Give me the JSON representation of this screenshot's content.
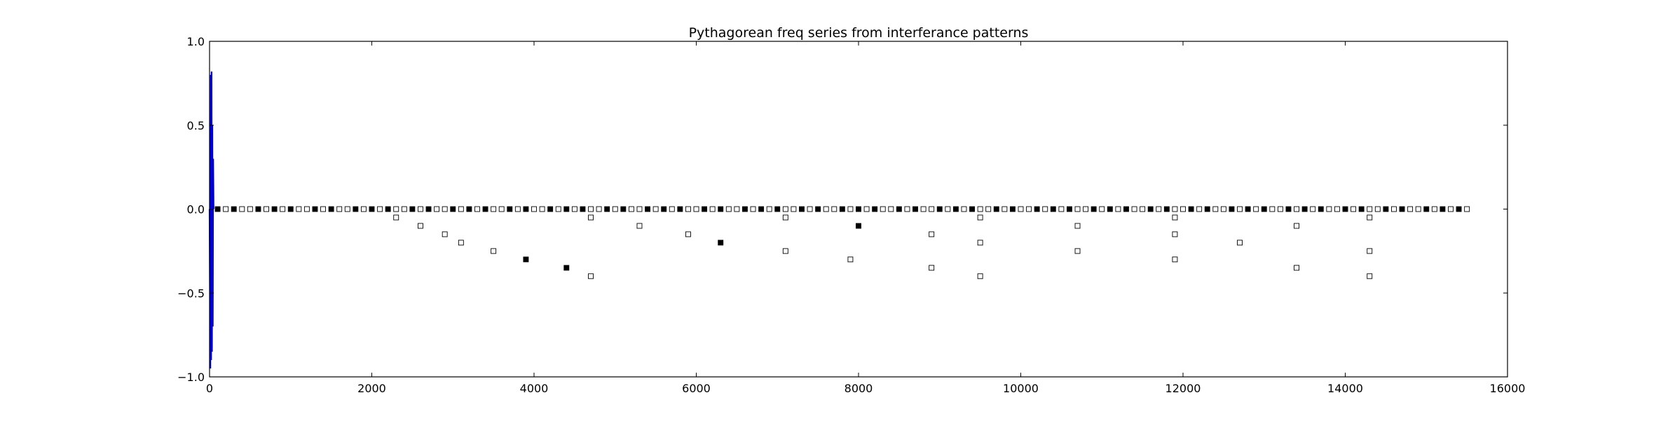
{
  "chart_data": {
    "type": "scatter",
    "title": "Pythagorean freq series from interferance patterns",
    "xlabel": "",
    "ylabel": "",
    "xlim": [
      0,
      16000
    ],
    "ylim": [
      -1.0,
      1.0
    ],
    "grid": false,
    "legend": "none",
    "x_ticks": [
      "0",
      "2000",
      "4000",
      "6000",
      "8000",
      "10000",
      "12000",
      "14000",
      "16000"
    ],
    "y_ticks": [
      "1.0",
      "0.5",
      "0.0",
      "−0.5",
      "−1.0"
    ],
    "colors": {
      "line": "#0000cc",
      "filled": "#000000",
      "open_edge": "#000000",
      "open_face": "#ffffff"
    },
    "line_series": {
      "x": [
        0,
        10,
        15,
        20,
        25,
        30,
        35,
        40,
        45,
        50
      ],
      "y": [
        0.0,
        -0.95,
        0.8,
        -0.9,
        0.82,
        -0.85,
        0.5,
        -0.7,
        0.3,
        0.0
      ]
    },
    "filled_points": [
      [
        100,
        0
      ],
      [
        300,
        0
      ],
      [
        600,
        0
      ],
      [
        800,
        0
      ],
      [
        1000,
        0
      ],
      [
        1300,
        0
      ],
      [
        1500,
        0
      ],
      [
        1800,
        0
      ],
      [
        2000,
        0
      ],
      [
        2200,
        0
      ],
      [
        2500,
        0
      ],
      [
        2700,
        0
      ],
      [
        3000,
        0
      ],
      [
        3200,
        0
      ],
      [
        3400,
        0
      ],
      [
        3700,
        0
      ],
      [
        3900,
        0
      ],
      [
        4200,
        0
      ],
      [
        4400,
        0
      ],
      [
        4600,
        0
      ],
      [
        4900,
        0
      ],
      [
        5100,
        0
      ],
      [
        5400,
        0
      ],
      [
        5600,
        0
      ],
      [
        5800,
        0
      ],
      [
        6100,
        0
      ],
      [
        6300,
        0
      ],
      [
        6600,
        0
      ],
      [
        6800,
        0
      ],
      [
        7000,
        0
      ],
      [
        7300,
        0
      ],
      [
        7500,
        0
      ],
      [
        7800,
        0
      ],
      [
        8000,
        0
      ],
      [
        8200,
        0
      ],
      [
        8500,
        0
      ],
      [
        8700,
        0
      ],
      [
        9000,
        0
      ],
      [
        9200,
        0
      ],
      [
        9400,
        0
      ],
      [
        9700,
        0
      ],
      [
        9900,
        0
      ],
      [
        10200,
        0
      ],
      [
        10400,
        0
      ],
      [
        10600,
        0
      ],
      [
        10900,
        0
      ],
      [
        11100,
        0
      ],
      [
        11300,
        0
      ],
      [
        11600,
        0
      ],
      [
        11800,
        0
      ],
      [
        12100,
        0
      ],
      [
        12300,
        0
      ],
      [
        12600,
        0
      ],
      [
        12800,
        0
      ],
      [
        13000,
        0
      ],
      [
        13300,
        0
      ],
      [
        13500,
        0
      ],
      [
        13700,
        0
      ],
      [
        14000,
        0
      ],
      [
        14200,
        0
      ],
      [
        14500,
        0
      ],
      [
        14700,
        0
      ],
      [
        15000,
        0
      ],
      [
        15200,
        0
      ],
      [
        15400,
        0
      ],
      [
        3900,
        -0.3
      ],
      [
        4400,
        -0.35
      ],
      [
        6300,
        -0.2
      ],
      [
        8000,
        -0.1
      ]
    ],
    "open_points": [
      [
        200,
        0
      ],
      [
        400,
        0
      ],
      [
        500,
        0
      ],
      [
        700,
        0
      ],
      [
        900,
        0
      ],
      [
        1100,
        0
      ],
      [
        1200,
        0
      ],
      [
        1400,
        0
      ],
      [
        1600,
        0
      ],
      [
        1700,
        0
      ],
      [
        1900,
        0
      ],
      [
        2100,
        0
      ],
      [
        2300,
        0
      ],
      [
        2400,
        0
      ],
      [
        2600,
        0
      ],
      [
        2800,
        0
      ],
      [
        2900,
        0
      ],
      [
        3100,
        0
      ],
      [
        3300,
        0
      ],
      [
        3500,
        0
      ],
      [
        3600,
        0
      ],
      [
        3800,
        0
      ],
      [
        4000,
        0
      ],
      [
        4100,
        0
      ],
      [
        4300,
        0
      ],
      [
        4500,
        0
      ],
      [
        4700,
        0
      ],
      [
        4800,
        0
      ],
      [
        5000,
        0
      ],
      [
        5200,
        0
      ],
      [
        5300,
        0
      ],
      [
        5500,
        0
      ],
      [
        5700,
        0
      ],
      [
        5900,
        0
      ],
      [
        6000,
        0
      ],
      [
        6200,
        0
      ],
      [
        6400,
        0
      ],
      [
        6500,
        0
      ],
      [
        6700,
        0
      ],
      [
        6900,
        0
      ],
      [
        7100,
        0
      ],
      [
        7200,
        0
      ],
      [
        7400,
        0
      ],
      [
        7600,
        0
      ],
      [
        7700,
        0
      ],
      [
        7900,
        0
      ],
      [
        8100,
        0
      ],
      [
        8300,
        0
      ],
      [
        8400,
        0
      ],
      [
        8600,
        0
      ],
      [
        8800,
        0
      ],
      [
        8900,
        0
      ],
      [
        9100,
        0
      ],
      [
        9300,
        0
      ],
      [
        9500,
        0
      ],
      [
        9600,
        0
      ],
      [
        9800,
        0
      ],
      [
        10000,
        0
      ],
      [
        10100,
        0
      ],
      [
        10300,
        0
      ],
      [
        10500,
        0
      ],
      [
        10700,
        0
      ],
      [
        10800,
        0
      ],
      [
        11000,
        0
      ],
      [
        11200,
        0
      ],
      [
        11400,
        0
      ],
      [
        11500,
        0
      ],
      [
        11700,
        0
      ],
      [
        11900,
        0
      ],
      [
        12000,
        0
      ],
      [
        12200,
        0
      ],
      [
        12400,
        0
      ],
      [
        12500,
        0
      ],
      [
        12700,
        0
      ],
      [
        12900,
        0
      ],
      [
        13100,
        0
      ],
      [
        13200,
        0
      ],
      [
        13400,
        0
      ],
      [
        13600,
        0
      ],
      [
        13800,
        0
      ],
      [
        13900,
        0
      ],
      [
        14100,
        0
      ],
      [
        14300,
        0
      ],
      [
        14400,
        0
      ],
      [
        14600,
        0
      ],
      [
        14800,
        0
      ],
      [
        14900,
        0
      ],
      [
        15100,
        0
      ],
      [
        15300,
        0
      ],
      [
        15500,
        0
      ],
      [
        2300,
        -0.05
      ],
      [
        2600,
        -0.1
      ],
      [
        2900,
        -0.15
      ],
      [
        3100,
        -0.2
      ],
      [
        3500,
        -0.25
      ],
      [
        4700,
        -0.05
      ],
      [
        4700,
        -0.4
      ],
      [
        5300,
        -0.1
      ],
      [
        5900,
        -0.15
      ],
      [
        7100,
        -0.05
      ],
      [
        7100,
        -0.25
      ],
      [
        7900,
        -0.3
      ],
      [
        8900,
        -0.15
      ],
      [
        8900,
        -0.35
      ],
      [
        9500,
        -0.05
      ],
      [
        9500,
        -0.2
      ],
      [
        9500,
        -0.4
      ],
      [
        10700,
        -0.1
      ],
      [
        10700,
        -0.25
      ],
      [
        11900,
        -0.05
      ],
      [
        11900,
        -0.15
      ],
      [
        11900,
        -0.3
      ],
      [
        12700,
        -0.2
      ],
      [
        13400,
        -0.1
      ],
      [
        13400,
        -0.35
      ],
      [
        14300,
        -0.05
      ],
      [
        14300,
        -0.25
      ],
      [
        14300,
        -0.4
      ]
    ]
  }
}
